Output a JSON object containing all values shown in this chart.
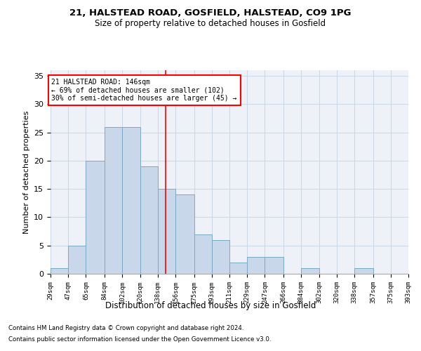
{
  "title1": "21, HALSTEAD ROAD, GOSFIELD, HALSTEAD, CO9 1PG",
  "title2": "Size of property relative to detached houses in Gosfield",
  "xlabel": "Distribution of detached houses by size in Gosfield",
  "ylabel": "Number of detached properties",
  "bar_color": "#c8d8ea",
  "bar_edge_color": "#7aaac8",
  "grid_color": "#ccd8e8",
  "background_color": "#eef2f8",
  "annotation_line_color": "red",
  "annotation_property_size": 146,
  "annotation_text_line1": "21 HALSTEAD ROAD: 146sqm",
  "annotation_text_line2": "← 69% of detached houses are smaller (102)",
  "annotation_text_line3": "30% of semi-detached houses are larger (45) →",
  "x_labels": [
    "29sqm",
    "47sqm",
    "65sqm",
    "84sqm",
    "102sqm",
    "120sqm",
    "138sqm",
    "156sqm",
    "175sqm",
    "193sqm",
    "211sqm",
    "229sqm",
    "247sqm",
    "266sqm",
    "284sqm",
    "302sqm",
    "320sqm",
    "338sqm",
    "357sqm",
    "375sqm",
    "393sqm"
  ],
  "bin_edges": [
    29,
    47,
    65,
    84,
    102,
    120,
    138,
    156,
    175,
    193,
    211,
    229,
    247,
    266,
    284,
    302,
    320,
    338,
    357,
    375,
    393
  ],
  "bar_heights": [
    1,
    5,
    20,
    26,
    26,
    19,
    15,
    14,
    7,
    6,
    2,
    3,
    3,
    0,
    1,
    0,
    0,
    1,
    0,
    0
  ],
  "ylim": [
    0,
    36
  ],
  "yticks": [
    0,
    5,
    10,
    15,
    20,
    25,
    30,
    35
  ],
  "footnote1": "Contains HM Land Registry data © Crown copyright and database right 2024.",
  "footnote2": "Contains public sector information licensed under the Open Government Licence v3.0."
}
